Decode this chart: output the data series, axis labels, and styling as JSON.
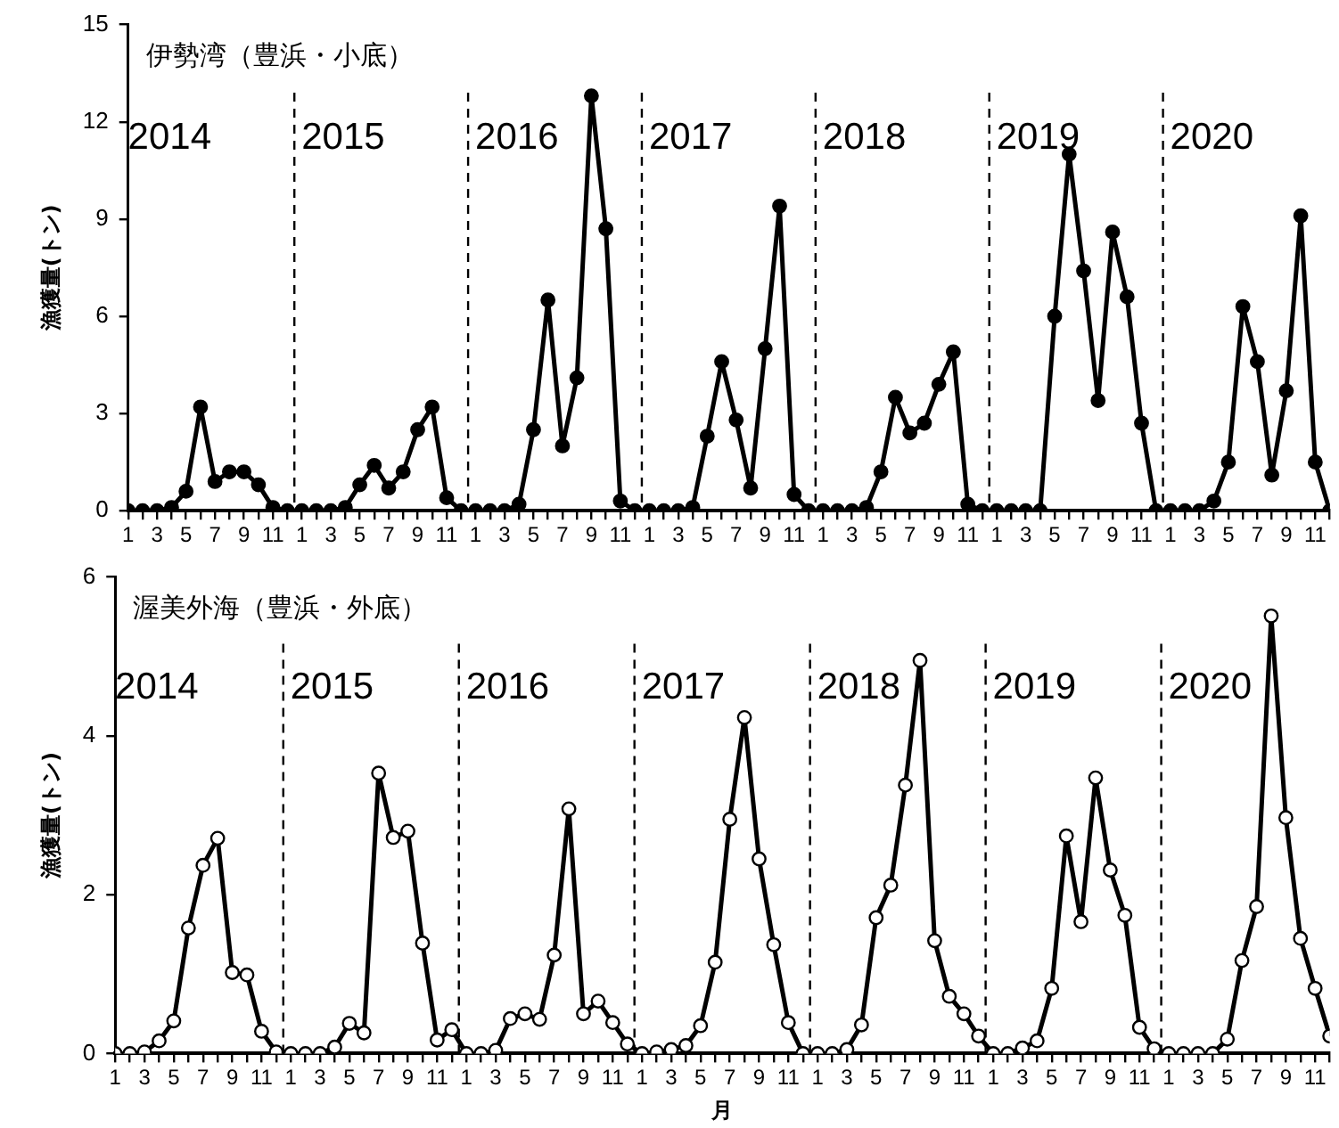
{
  "chart_data": [
    {
      "type": "line",
      "title": "伊勢湾（豊浜・小底）",
      "ylabel": "漁獲量(トン)",
      "marker": "circle",
      "line_style": "solid",
      "grid": false,
      "legend": false,
      "x": [
        "2014-01",
        "2014-02",
        "2014-03",
        "2014-04",
        "2014-05",
        "2014-06",
        "2014-07",
        "2014-08",
        "2014-09",
        "2014-10",
        "2014-11",
        "2014-12",
        "2015-01",
        "2015-02",
        "2015-03",
        "2015-04",
        "2015-05",
        "2015-06",
        "2015-07",
        "2015-08",
        "2015-09",
        "2015-10",
        "2015-11",
        "2015-12",
        "2016-01",
        "2016-02",
        "2016-03",
        "2016-04",
        "2016-05",
        "2016-06",
        "2016-07",
        "2016-08",
        "2016-09",
        "2016-10",
        "2016-11",
        "2016-12",
        "2017-01",
        "2017-02",
        "2017-03",
        "2017-04",
        "2017-05",
        "2017-06",
        "2017-07",
        "2017-08",
        "2017-09",
        "2017-10",
        "2017-11",
        "2017-12",
        "2018-01",
        "2018-02",
        "2018-03",
        "2018-04",
        "2018-05",
        "2018-06",
        "2018-07",
        "2018-08",
        "2018-09",
        "2018-10",
        "2018-11",
        "2018-12",
        "2019-01",
        "2019-02",
        "2019-03",
        "2019-04",
        "2019-05",
        "2019-06",
        "2019-07",
        "2019-08",
        "2019-09",
        "2019-10",
        "2019-11",
        "2019-12",
        "2020-01",
        "2020-02",
        "2020-03",
        "2020-04",
        "2020-05",
        "2020-06",
        "2020-07",
        "2020-08",
        "2020-09",
        "2020-10",
        "2020-11",
        "2020-12"
      ],
      "xlim": [
        "2014-01",
        "2020-12"
      ],
      "xticks": [
        {
          "value": "2014-01",
          "label": "1"
        },
        {
          "value": "2014-02",
          "label": null
        },
        {
          "value": "2014-03",
          "label": "3"
        },
        {
          "value": "2014-04",
          "label": null
        },
        {
          "value": "2014-05",
          "label": "5"
        },
        {
          "value": "2014-06",
          "label": null
        },
        {
          "value": "2014-07",
          "label": "7"
        },
        {
          "value": "2014-08",
          "label": null
        },
        {
          "value": "2014-09",
          "label": "9"
        },
        {
          "value": "2014-10",
          "label": null
        },
        {
          "value": "2014-11",
          "label": "11"
        },
        {
          "value": "2014-12",
          "label": null
        },
        {
          "value": "2015-01",
          "label": "1"
        },
        {
          "value": "2015-02",
          "label": null
        },
        {
          "value": "2015-03",
          "label": "3"
        },
        {
          "value": "2015-04",
          "label": null
        },
        {
          "value": "2015-05",
          "label": "5"
        },
        {
          "value": "2015-06",
          "label": null
        },
        {
          "value": "2015-07",
          "label": "7"
        },
        {
          "value": "2015-08",
          "label": null
        },
        {
          "value": "2015-09",
          "label": "9"
        },
        {
          "value": "2015-10",
          "label": null
        },
        {
          "value": "2015-11",
          "label": "11"
        },
        {
          "value": "2015-12",
          "label": null
        },
        {
          "value": "2016-01",
          "label": "1"
        },
        {
          "value": "2016-02",
          "label": null
        },
        {
          "value": "2016-03",
          "label": "3"
        },
        {
          "value": "2016-04",
          "label": null
        },
        {
          "value": "2016-05",
          "label": "5"
        },
        {
          "value": "2016-06",
          "label": null
        },
        {
          "value": "2016-07",
          "label": "7"
        },
        {
          "value": "2016-08",
          "label": null
        },
        {
          "value": "2016-09",
          "label": "9"
        },
        {
          "value": "2016-10",
          "label": null
        },
        {
          "value": "2016-11",
          "label": "11"
        },
        {
          "value": "2016-12",
          "label": null
        },
        {
          "value": "2017-01",
          "label": "1"
        },
        {
          "value": "2017-02",
          "label": null
        },
        {
          "value": "2017-03",
          "label": "3"
        },
        {
          "value": "2017-04",
          "label": null
        },
        {
          "value": "2017-05",
          "label": "5"
        },
        {
          "value": "2017-06",
          "label": null
        },
        {
          "value": "2017-07",
          "label": "7"
        },
        {
          "value": "2017-08",
          "label": null
        },
        {
          "value": "2017-09",
          "label": "9"
        },
        {
          "value": "2017-10",
          "label": null
        },
        {
          "value": "2017-11",
          "label": "11"
        },
        {
          "value": "2017-12",
          "label": null
        },
        {
          "value": "2018-01",
          "label": "1"
        },
        {
          "value": "2018-02",
          "label": null
        },
        {
          "value": "2018-03",
          "label": "3"
        },
        {
          "value": "2018-04",
          "label": null
        },
        {
          "value": "2018-05",
          "label": "5"
        },
        {
          "value": "2018-06",
          "label": null
        },
        {
          "value": "2018-07",
          "label": "7"
        },
        {
          "value": "2018-08",
          "label": null
        },
        {
          "value": "2018-09",
          "label": "9"
        },
        {
          "value": "2018-10",
          "label": null
        },
        {
          "value": "2018-11",
          "label": "11"
        },
        {
          "value": "2018-12",
          "label": null
        },
        {
          "value": "2019-01",
          "label": "1"
        },
        {
          "value": "2019-02",
          "label": null
        },
        {
          "value": "2019-03",
          "label": "3"
        },
        {
          "value": "2019-04",
          "label": null
        },
        {
          "value": "2019-05",
          "label": "5"
        },
        {
          "value": "2019-06",
          "label": null
        },
        {
          "value": "2019-07",
          "label": "7"
        },
        {
          "value": "2019-08",
          "label": null
        },
        {
          "value": "2019-09",
          "label": "9"
        },
        {
          "value": "2019-10",
          "label": null
        },
        {
          "value": "2019-11",
          "label": "11"
        },
        {
          "value": "2019-12",
          "label": null
        },
        {
          "value": "2020-01",
          "label": "1"
        },
        {
          "value": "2020-02",
          "label": null
        },
        {
          "value": "2020-03",
          "label": "3"
        },
        {
          "value": "2020-04",
          "label": null
        },
        {
          "value": "2020-05",
          "label": "5"
        },
        {
          "value": "2020-06",
          "label": null
        },
        {
          "value": "2020-07",
          "label": "7"
        },
        {
          "value": "2020-08",
          "label": null
        },
        {
          "value": "2020-09",
          "label": "9"
        },
        {
          "value": "2020-10",
          "label": null
        },
        {
          "value": "2020-11",
          "label": "11"
        },
        {
          "value": "2020-12",
          "label": null
        }
      ],
      "ylim": [
        0,
        15
      ],
      "yticks": [
        0,
        3,
        6,
        9,
        12,
        15
      ],
      "ref_lines": [
        {
          "axis": "x",
          "value": "2014-12-16",
          "line_style": "dashed",
          "color": "#000000"
        },
        {
          "axis": "x",
          "value": "2015-12-16",
          "line_style": "dashed",
          "color": "#000000"
        },
        {
          "axis": "x",
          "value": "2016-12-16",
          "line_style": "dashed",
          "color": "#000000"
        },
        {
          "axis": "x",
          "value": "2017-12-16",
          "line_style": "dashed",
          "color": "#000000"
        },
        {
          "axis": "x",
          "value": "2018-12-16",
          "line_style": "dashed",
          "color": "#000000"
        },
        {
          "axis": "x",
          "value": "2019-12-16",
          "line_style": "dashed",
          "color": "#000000"
        }
      ],
      "annotations": [
        "2014",
        "2015",
        "2016",
        "2017",
        "2018",
        "2019",
        "2020"
      ],
      "series": [
        {
          "color": "#000000",
          "values": [
            0,
            0,
            0,
            0.1,
            0.6,
            3.2,
            0.9,
            1.2,
            1.2,
            0.8,
            0.1,
            0,
            0,
            0,
            0,
            0.1,
            0.8,
            1.4,
            0.7,
            1.2,
            2.5,
            3.2,
            0.4,
            0,
            0,
            0,
            0,
            0.2,
            2.5,
            6.5,
            2.0,
            4.1,
            12.8,
            8.7,
            0.3,
            0,
            0,
            0,
            0,
            0.1,
            2.3,
            4.6,
            2.8,
            0.7,
            5.0,
            9.4,
            0.5,
            0,
            0,
            0,
            0,
            0.1,
            1.2,
            3.5,
            2.4,
            2.7,
            3.9,
            4.9,
            0.2,
            0,
            0,
            0,
            0,
            0,
            6.0,
            11.0,
            7.4,
            3.4,
            8.6,
            6.6,
            2.7,
            0,
            0,
            0,
            0,
            0.3,
            1.5,
            6.3,
            4.6,
            1.1,
            3.7,
            9.1,
            1.5,
            0
          ]
        }
      ]
    },
    {
      "type": "line",
      "title": "渥美外海（豊浜・外底）",
      "ylabel": "漁獲量(トン)",
      "xlabel": "月",
      "marker": "circle",
      "line_style": "solid",
      "grid": false,
      "legend": false,
      "x": [
        "2014-01",
        "2014-02",
        "2014-03",
        "2014-04",
        "2014-05",
        "2014-06",
        "2014-07",
        "2014-08",
        "2014-09",
        "2014-10",
        "2014-11",
        "2014-12",
        "2015-01",
        "2015-02",
        "2015-03",
        "2015-04",
        "2015-05",
        "2015-06",
        "2015-07",
        "2015-08",
        "2015-09",
        "2015-10",
        "2015-11",
        "2015-12",
        "2016-01",
        "2016-02",
        "2016-03",
        "2016-04",
        "2016-05",
        "2016-06",
        "2016-07",
        "2016-08",
        "2016-09",
        "2016-10",
        "2016-11",
        "2016-12",
        "2017-01",
        "2017-02",
        "2017-03",
        "2017-04",
        "2017-05",
        "2017-06",
        "2017-07",
        "2017-08",
        "2017-09",
        "2017-10",
        "2017-11",
        "2017-12",
        "2018-01",
        "2018-02",
        "2018-03",
        "2018-04",
        "2018-05",
        "2018-06",
        "2018-07",
        "2018-08",
        "2018-09",
        "2018-10",
        "2018-11",
        "2018-12",
        "2019-01",
        "2019-02",
        "2019-03",
        "2019-04",
        "2019-05",
        "2019-06",
        "2019-07",
        "2019-08",
        "2019-09",
        "2019-10",
        "2019-11",
        "2019-12",
        "2020-01",
        "2020-02",
        "2020-03",
        "2020-04",
        "2020-05",
        "2020-06",
        "2020-07",
        "2020-08",
        "2020-09",
        "2020-10",
        "2020-11",
        "2020-12"
      ],
      "xlim": [
        "2014-01",
        "2020-12"
      ],
      "xticks": [
        {
          "value": "2014-01",
          "label": "1"
        },
        {
          "value": "2014-02",
          "label": null
        },
        {
          "value": "2014-03",
          "label": "3"
        },
        {
          "value": "2014-04",
          "label": null
        },
        {
          "value": "2014-05",
          "label": "5"
        },
        {
          "value": "2014-06",
          "label": null
        },
        {
          "value": "2014-07",
          "label": "7"
        },
        {
          "value": "2014-08",
          "label": null
        },
        {
          "value": "2014-09",
          "label": "9"
        },
        {
          "value": "2014-10",
          "label": null
        },
        {
          "value": "2014-11",
          "label": "11"
        },
        {
          "value": "2014-12",
          "label": null
        },
        {
          "value": "2015-01",
          "label": "1"
        },
        {
          "value": "2015-02",
          "label": null
        },
        {
          "value": "2015-03",
          "label": "3"
        },
        {
          "value": "2015-04",
          "label": null
        },
        {
          "value": "2015-05",
          "label": "5"
        },
        {
          "value": "2015-06",
          "label": null
        },
        {
          "value": "2015-07",
          "label": "7"
        },
        {
          "value": "2015-08",
          "label": null
        },
        {
          "value": "2015-09",
          "label": "9"
        },
        {
          "value": "2015-10",
          "label": null
        },
        {
          "value": "2015-11",
          "label": "11"
        },
        {
          "value": "2015-12",
          "label": null
        },
        {
          "value": "2016-01",
          "label": "1"
        },
        {
          "value": "2016-02",
          "label": null
        },
        {
          "value": "2016-03",
          "label": "3"
        },
        {
          "value": "2016-04",
          "label": null
        },
        {
          "value": "2016-05",
          "label": "5"
        },
        {
          "value": "2016-06",
          "label": null
        },
        {
          "value": "2016-07",
          "label": "7"
        },
        {
          "value": "2016-08",
          "label": null
        },
        {
          "value": "2016-09",
          "label": "9"
        },
        {
          "value": "2016-10",
          "label": null
        },
        {
          "value": "2016-11",
          "label": "11"
        },
        {
          "value": "2016-12",
          "label": null
        },
        {
          "value": "2017-01",
          "label": "1"
        },
        {
          "value": "2017-02",
          "label": null
        },
        {
          "value": "2017-03",
          "label": "3"
        },
        {
          "value": "2017-04",
          "label": null
        },
        {
          "value": "2017-05",
          "label": "5"
        },
        {
          "value": "2017-06",
          "label": null
        },
        {
          "value": "2017-07",
          "label": "7"
        },
        {
          "value": "2017-08",
          "label": null
        },
        {
          "value": "2017-09",
          "label": "9"
        },
        {
          "value": "2017-10",
          "label": null
        },
        {
          "value": "2017-11",
          "label": "11"
        },
        {
          "value": "2017-12",
          "label": null
        },
        {
          "value": "2018-01",
          "label": "1"
        },
        {
          "value": "2018-02",
          "label": null
        },
        {
          "value": "2018-03",
          "label": "3"
        },
        {
          "value": "2018-04",
          "label": null
        },
        {
          "value": "2018-05",
          "label": "5"
        },
        {
          "value": "2018-06",
          "label": null
        },
        {
          "value": "2018-07",
          "label": "7"
        },
        {
          "value": "2018-08",
          "label": null
        },
        {
          "value": "2018-09",
          "label": "9"
        },
        {
          "value": "2018-10",
          "label": null
        },
        {
          "value": "2018-11",
          "label": "11"
        },
        {
          "value": "2018-12",
          "label": null
        },
        {
          "value": "2019-01",
          "label": "1"
        },
        {
          "value": "2019-02",
          "label": null
        },
        {
          "value": "2019-03",
          "label": "3"
        },
        {
          "value": "2019-04",
          "label": null
        },
        {
          "value": "2019-05",
          "label": "5"
        },
        {
          "value": "2019-06",
          "label": null
        },
        {
          "value": "2019-07",
          "label": "7"
        },
        {
          "value": "2019-08",
          "label": null
        },
        {
          "value": "2019-09",
          "label": "9"
        },
        {
          "value": "2019-10",
          "label": null
        },
        {
          "value": "2019-11",
          "label": "11"
        },
        {
          "value": "2019-12",
          "label": null
        },
        {
          "value": "2020-01",
          "label": "1"
        },
        {
          "value": "2020-02",
          "label": null
        },
        {
          "value": "2020-03",
          "label": "3"
        },
        {
          "value": "2020-04",
          "label": null
        },
        {
          "value": "2020-05",
          "label": "5"
        },
        {
          "value": "2020-06",
          "label": null
        },
        {
          "value": "2020-07",
          "label": "7"
        },
        {
          "value": "2020-08",
          "label": null
        },
        {
          "value": "2020-09",
          "label": "9"
        },
        {
          "value": "2020-10",
          "label": null
        },
        {
          "value": "2020-11",
          "label": "11"
        },
        {
          "value": "2020-12",
          "label": null
        }
      ],
      "ylim": [
        0,
        6
      ],
      "yticks": [
        0,
        2,
        4,
        6
      ],
      "ref_lines": [
        {
          "axis": "x",
          "value": "2014-12-16",
          "line_style": "dashed",
          "color": "#000000"
        },
        {
          "axis": "x",
          "value": "2015-12-16",
          "line_style": "dashed",
          "color": "#000000"
        },
        {
          "axis": "x",
          "value": "2016-12-16",
          "line_style": "dashed",
          "color": "#000000"
        },
        {
          "axis": "x",
          "value": "2017-12-16",
          "line_style": "dashed",
          "color": "#000000"
        },
        {
          "axis": "x",
          "value": "2018-12-16",
          "line_style": "dashed",
          "color": "#000000"
        },
        {
          "axis": "x",
          "value": "2019-12-16",
          "line_style": "dashed",
          "color": "#000000"
        }
      ],
      "annotations": [
        "2014",
        "2015",
        "2016",
        "2017",
        "2018",
        "2019",
        "2020"
      ],
      "series": [
        {
          "color": "#000000",
          "values": [
            0,
            0,
            0.02,
            0.16,
            0.41,
            1.58,
            2.37,
            2.71,
            1.02,
            0.99,
            0.28,
            0.02,
            0,
            0,
            0,
            0.08,
            0.38,
            0.26,
            3.53,
            2.72,
            2.8,
            1.39,
            0.17,
            0.3,
            0,
            0,
            0.04,
            0.44,
            0.5,
            0.43,
            1.24,
            3.08,
            0.5,
            0.66,
            0.39,
            0.12,
            0,
            0.02,
            0.05,
            0.1,
            0.35,
            1.15,
            2.95,
            4.23,
            2.45,
            1.37,
            0.39,
            0,
            0,
            0,
            0.05,
            0.36,
            1.71,
            2.12,
            3.38,
            4.95,
            1.42,
            0.72,
            0.5,
            0.22,
            0,
            0,
            0.07,
            0.16,
            0.82,
            2.74,
            1.66,
            3.47,
            2.31,
            1.74,
            0.33,
            0.06,
            0,
            0,
            0,
            0,
            0.18,
            1.17,
            1.85,
            5.51,
            2.97,
            1.45,
            0.82,
            0.22
          ]
        }
      ]
    }
  ]
}
